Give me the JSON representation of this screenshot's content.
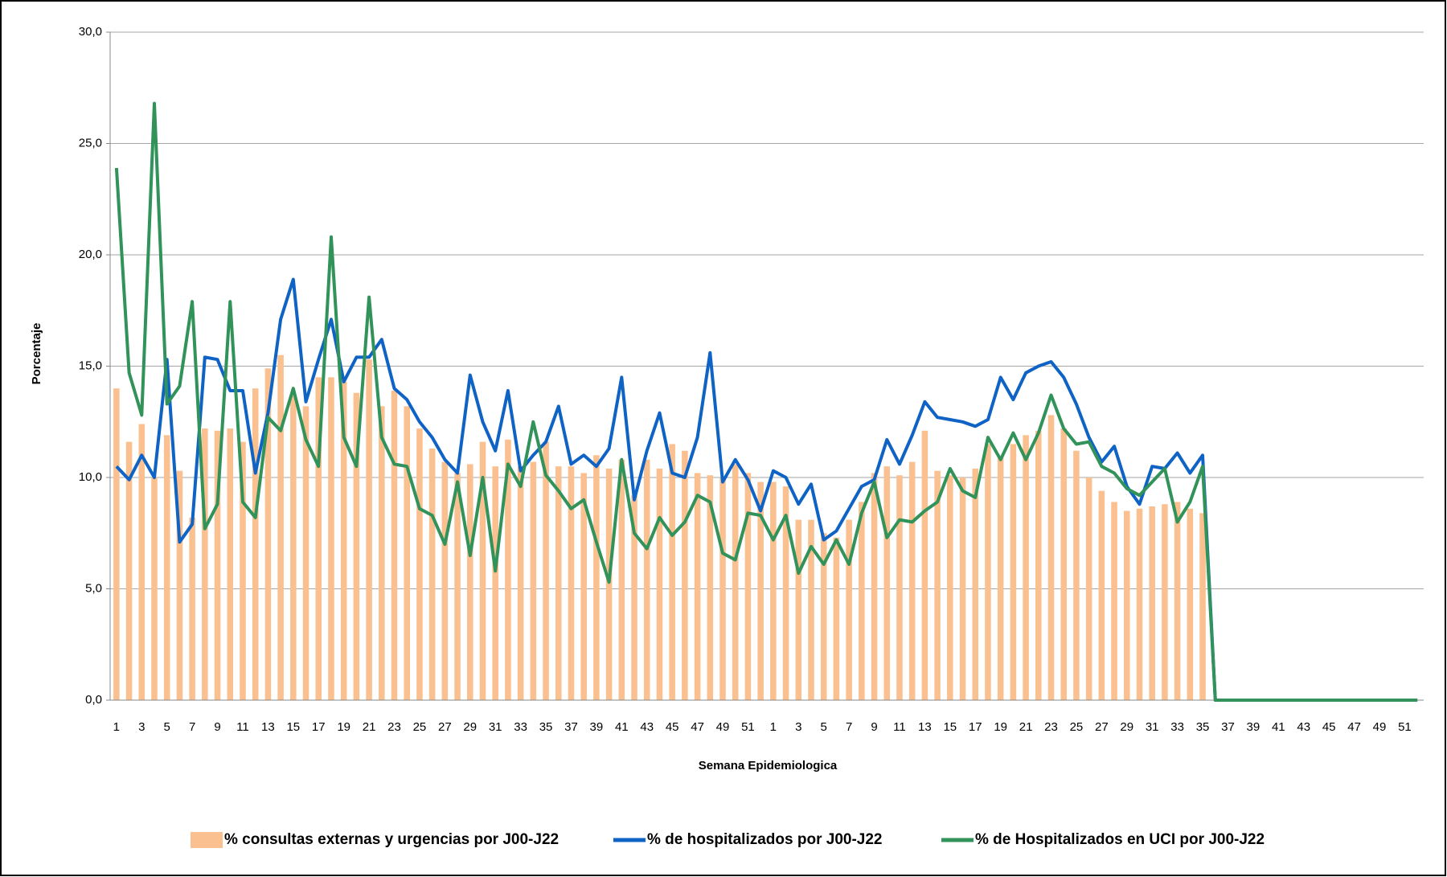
{
  "chart_data": {
    "type": "bar_line",
    "x_label": "Semana Epidemiologica",
    "y_label": "Porcentaje",
    "categories": [
      "1",
      null,
      "3",
      null,
      "5",
      null,
      "7",
      null,
      "9",
      null,
      "11",
      null,
      "13",
      null,
      "15",
      null,
      "17",
      null,
      "19",
      null,
      "21",
      null,
      "23",
      null,
      "25",
      null,
      "27",
      null,
      "29",
      null,
      "31",
      null,
      "33",
      null,
      "35",
      null,
      "37",
      null,
      "39",
      null,
      "41",
      null,
      "43",
      null,
      "45",
      null,
      "47",
      null,
      "49",
      null,
      "51",
      null,
      "1",
      null,
      "3",
      null,
      "5",
      null,
      "7",
      null,
      "9",
      null,
      "11",
      null,
      "13",
      null,
      "15",
      null,
      "17",
      null,
      "19",
      null,
      "21",
      null,
      "23",
      null,
      "25",
      null,
      "27",
      null,
      "29",
      null,
      "31",
      null,
      "33",
      null,
      "35",
      null,
      "37",
      null,
      "39",
      null,
      "41",
      null,
      "43",
      null,
      "45",
      null,
      "47",
      null,
      "49",
      null,
      "51",
      null
    ],
    "series": [
      {
        "name": "% consultas externas y urgencias por J00-J22",
        "kind": "bar",
        "color": "#fac090",
        "values": [
          14.0,
          11.6,
          12.4,
          10.0,
          11.9,
          10.3,
          8.2,
          12.2,
          12.1,
          12.2,
          11.6,
          14.0,
          14.9,
          15.5,
          13.7,
          13.2,
          14.5,
          14.5,
          14.3,
          13.8,
          15.3,
          13.2,
          13.9,
          13.2,
          12.2,
          11.3,
          10.7,
          10.2,
          10.6,
          11.6,
          10.5,
          11.7,
          10.5,
          10.7,
          11.6,
          10.5,
          10.5,
          10.2,
          11.0,
          10.4,
          10.8,
          9.2,
          10.8,
          10.4,
          11.5,
          11.2,
          10.2,
          10.1,
          10.0,
          10.6,
          10.2,
          9.8,
          9.8,
          9.6,
          8.1,
          8.1,
          7.5,
          7.3,
          8.1,
          8.9,
          10.2,
          10.5,
          10.1,
          10.7,
          12.1,
          10.3,
          10.1,
          10.0,
          10.4,
          11.5,
          10.9,
          11.5,
          11.9,
          12.1,
          12.8,
          12.2,
          11.2,
          10.0,
          9.4,
          8.9,
          8.5,
          8.6,
          8.7,
          8.8,
          8.9,
          8.6,
          8.4,
          0,
          0,
          0,
          0,
          0,
          0,
          0,
          0,
          0,
          0,
          0,
          0,
          0,
          0,
          0,
          0,
          0
        ]
      },
      {
        "name": "% de hospitalizados por J00-J22",
        "kind": "line",
        "color": "#0f63c4",
        "values": [
          10.5,
          9.9,
          11.0,
          10.0,
          15.3,
          7.1,
          7.9,
          15.4,
          15.3,
          13.9,
          13.9,
          10.2,
          12.9,
          17.1,
          18.9,
          13.4,
          15.3,
          17.1,
          14.3,
          15.4,
          15.4,
          16.2,
          14.0,
          13.5,
          12.5,
          11.8,
          10.8,
          10.2,
          14.6,
          12.5,
          11.2,
          13.9,
          10.3,
          11.0,
          11.6,
          13.2,
          10.6,
          11.0,
          10.5,
          11.3,
          14.5,
          9.0,
          11.2,
          12.9,
          10.2,
          10.0,
          11.8,
          15.6,
          9.8,
          10.8,
          9.9,
          8.5,
          10.3,
          10.0,
          8.8,
          9.7,
          7.2,
          7.6,
          8.6,
          9.6,
          9.9,
          11.7,
          10.6,
          11.9,
          13.4,
          12.7,
          12.6,
          12.5,
          12.3,
          12.6,
          14.5,
          13.5,
          14.7,
          15.0,
          15.2,
          14.5,
          13.3,
          11.8,
          10.7,
          11.4,
          9.6,
          8.8,
          10.5,
          10.4,
          11.1,
          10.2,
          11.0,
          0,
          0,
          0,
          0,
          0,
          0,
          0,
          0,
          0,
          0,
          0,
          0,
          0,
          0,
          0,
          0,
          0
        ]
      },
      {
        "name": "% de Hospitalizados en UCI por J00-J22",
        "kind": "line",
        "color": "#31925a",
        "values": [
          23.9,
          14.7,
          12.8,
          26.8,
          13.3,
          14.1,
          17.9,
          7.7,
          8.8,
          17.9,
          8.9,
          8.2,
          12.7,
          12.1,
          14.0,
          11.7,
          10.5,
          20.8,
          11.8,
          10.5,
          18.1,
          11.8,
          10.6,
          10.5,
          8.6,
          8.3,
          7.0,
          9.8,
          6.5,
          10.0,
          5.8,
          10.6,
          9.6,
          12.5,
          10.1,
          9.4,
          8.6,
          9.0,
          7.1,
          5.3,
          10.8,
          7.5,
          6.8,
          8.2,
          7.4,
          8.0,
          9.2,
          8.9,
          6.6,
          6.3,
          8.4,
          8.3,
          7.2,
          8.3,
          5.7,
          6.9,
          6.1,
          7.2,
          6.1,
          8.4,
          9.8,
          7.3,
          8.1,
          8.0,
          8.5,
          8.9,
          10.4,
          9.4,
          9.1,
          11.8,
          10.8,
          12.0,
          10.8,
          12.0,
          13.7,
          12.2,
          11.5,
          11.6,
          10.5,
          10.2,
          9.5,
          9.2,
          9.8,
          10.4,
          8.0,
          8.9,
          10.5,
          0,
          0,
          0,
          0,
          0,
          0,
          0,
          0,
          0,
          0,
          0,
          0,
          0,
          0,
          0,
          0,
          0
        ]
      }
    ],
    "ylim": [
      0,
      30
    ],
    "yticks": [
      {
        "value": 0,
        "label": "0,0"
      },
      {
        "value": 5,
        "label": "5,0"
      },
      {
        "value": 10,
        "label": "10,0"
      },
      {
        "value": 15,
        "label": "15,0"
      },
      {
        "value": 20,
        "label": "20,0"
      },
      {
        "value": 25,
        "label": "25,0"
      },
      {
        "value": 30,
        "label": "30,0"
      }
    ],
    "grid": true,
    "legend": "bottom"
  }
}
